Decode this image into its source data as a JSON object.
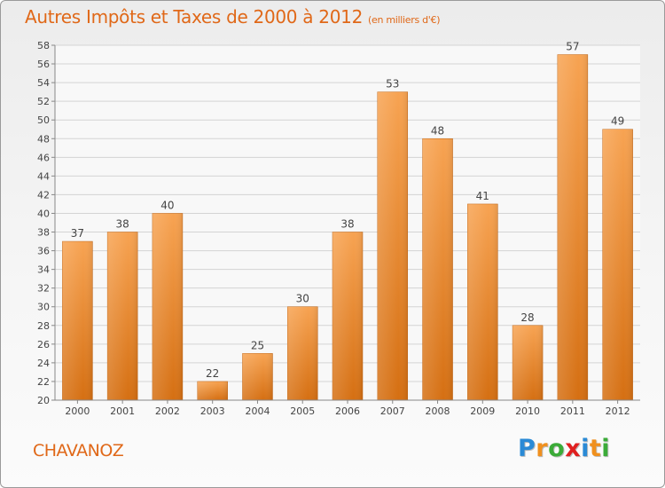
{
  "title": "Autres Impôts et Taxes de 2000 à 2012",
  "subtitle": "(en milliers d'€)",
  "commune": "CHAVANOZ",
  "logo": {
    "text": "Proxiti",
    "letters": [
      {
        "char": "P",
        "color": "#2a8ad6"
      },
      {
        "char": "r",
        "color": "#f0901e"
      },
      {
        "char": "o",
        "color": "#3bab38"
      },
      {
        "char": "x",
        "color": "#e02020"
      },
      {
        "char": "i",
        "color": "#2a8ad6"
      },
      {
        "char": "t",
        "color": "#f0901e"
      },
      {
        "char": "i",
        "color": "#3bab38"
      }
    ]
  },
  "colors": {
    "accent": "#e06818",
    "bar_top": "#f7a352",
    "bar_bottom": "#d56f12",
    "grid": "#d4d4d4",
    "axis_text": "#444444"
  },
  "chart_data": {
    "type": "bar",
    "categories": [
      "2000",
      "2001",
      "2002",
      "2003",
      "2004",
      "2005",
      "2006",
      "2007",
      "2008",
      "2009",
      "2010",
      "2011",
      "2012"
    ],
    "values": [
      37,
      38,
      40,
      22,
      25,
      30,
      38,
      53,
      48,
      41,
      28,
      57,
      49
    ],
    "ylim": [
      20,
      58
    ],
    "ytick_step": 2,
    "grid": true,
    "data_labels": true
  }
}
